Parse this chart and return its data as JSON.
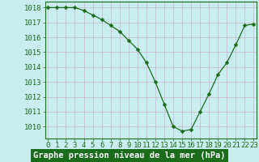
{
  "x": [
    0,
    1,
    2,
    3,
    4,
    5,
    6,
    7,
    8,
    9,
    10,
    11,
    12,
    13,
    14,
    15,
    16,
    17,
    18,
    19,
    20,
    21,
    22,
    23
  ],
  "y": [
    1018.0,
    1018.0,
    1018.0,
    1018.0,
    1017.8,
    1017.5,
    1017.2,
    1016.8,
    1016.4,
    1015.8,
    1015.2,
    1014.3,
    1013.0,
    1011.5,
    1010.0,
    1009.7,
    1009.8,
    1011.0,
    1012.2,
    1013.5,
    1014.3,
    1015.5,
    1016.8,
    1016.9
  ],
  "line_color": "#1a6b1a",
  "marker": "D",
  "marker_size": 2.5,
  "bg_color": "#c8eef0",
  "grid_color": "#c8b4c8",
  "plot_bg": "#c8eef0",
  "ylabel_ticks": [
    1010,
    1011,
    1012,
    1013,
    1014,
    1015,
    1016,
    1017,
    1018
  ],
  "ylim": [
    1009.2,
    1018.4
  ],
  "xlim": [
    -0.3,
    23.3
  ],
  "xlabel_label": "Graphe pression niveau de la mer (hPa)",
  "xlabel_bg": "#1a6b1a",
  "xlabel_fg": "#ffffff",
  "tick_label_color": "#1a6b1a",
  "tick_fontsize": 6.5,
  "xlabel_fontsize": 7.5
}
